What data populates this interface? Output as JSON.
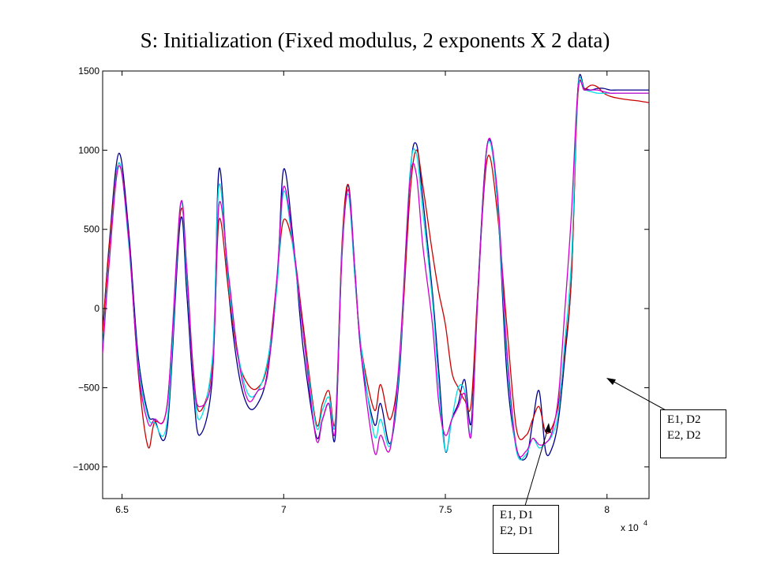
{
  "chart_data": {
    "type": "line",
    "title": "S: Initialization (Fixed modulus, 2 exponents X 2 data)",
    "xlabel": "",
    "ylabel": "",
    "x_exponent_label": "x 10",
    "x_exponent_power": "4",
    "xlim": [
      64400,
      81300
    ],
    "ylim": [
      -1200,
      1500
    ],
    "x_ticks": [
      65000,
      70000,
      75000,
      80000
    ],
    "x_tick_labels": [
      "6.5",
      "7",
      "7.5",
      "8"
    ],
    "y_ticks": [
      -1000,
      -500,
      0,
      500,
      1000,
      1500
    ],
    "y_tick_labels": [
      "−1000",
      "−500",
      "0",
      "500",
      "1000",
      "1500"
    ],
    "grid": false,
    "series": [
      {
        "color": "#00008b",
        "x": [
          64400,
          64600,
          64900,
          65200,
          65500,
          65800,
          66000,
          66400,
          66800,
          67000,
          67200,
          67400,
          67800,
          68000,
          68300,
          68600,
          68900,
          69200,
          69500,
          69800,
          70000,
          70300,
          70600,
          71000,
          71200,
          71400,
          71600,
          71800,
          72000,
          72200,
          72400,
          72800,
          73000,
          73300,
          73600,
          73900,
          74100,
          74300,
          74600,
          74800,
          75000,
          75200,
          75400,
          75600,
          75800,
          76000,
          76300,
          76600,
          76900,
          77200,
          77500,
          77700,
          77900,
          78100,
          78300,
          78500,
          78700,
          78900,
          79100,
          79300,
          79500,
          79700,
          79900,
          80100,
          80300,
          80600,
          81000,
          81300
        ],
        "y": [
          -150,
          400,
          980,
          500,
          -300,
          -660,
          -700,
          -750,
          550,
          100,
          -500,
          -800,
          -420,
          880,
          100,
          -400,
          -620,
          -600,
          -400,
          180,
          880,
          420,
          -250,
          -800,
          -700,
          -600,
          -800,
          350,
          780,
          250,
          -300,
          -730,
          -600,
          -850,
          -350,
          820,
          1040,
          700,
          100,
          -400,
          -900,
          -700,
          -600,
          -450,
          -720,
          100,
          1040,
          700,
          -400,
          -880,
          -940,
          -720,
          -520,
          -900,
          -880,
          -700,
          -300,
          200,
          1390,
          1390,
          1380,
          1390,
          1390,
          1380,
          1380,
          1380,
          1380,
          1380
        ]
      },
      {
        "color": "#cc0000",
        "x": [
          64400,
          64600,
          64900,
          65200,
          65500,
          65800,
          66000,
          66400,
          66800,
          67000,
          67200,
          67400,
          67800,
          68000,
          68300,
          68600,
          68900,
          69200,
          69500,
          69800,
          70000,
          70300,
          70600,
          71000,
          71200,
          71400,
          71600,
          71800,
          72000,
          72200,
          72400,
          72800,
          73000,
          73300,
          73600,
          73900,
          74100,
          74300,
          74600,
          74800,
          75000,
          75200,
          75400,
          75600,
          75800,
          76000,
          76300,
          76600,
          76900,
          77200,
          77500,
          77700,
          77900,
          78100,
          78300,
          78500,
          78700,
          78900,
          79100,
          79300,
          79500,
          79700,
          79900,
          80100,
          80300,
          80600,
          81000,
          81300
        ],
        "y": [
          -150,
          380,
          920,
          450,
          -400,
          -870,
          -720,
          -600,
          600,
          250,
          -380,
          -650,
          -350,
          560,
          100,
          -320,
          -480,
          -500,
          -350,
          200,
          560,
          380,
          -100,
          -720,
          -600,
          -520,
          -700,
          400,
          780,
          200,
          -250,
          -640,
          -480,
          -700,
          -300,
          700,
          1000,
          780,
          350,
          100,
          -100,
          -400,
          -500,
          -580,
          -600,
          100,
          950,
          620,
          -100,
          -760,
          -800,
          -700,
          -620,
          -780,
          -750,
          -600,
          -250,
          200,
          1350,
          1380,
          1410,
          1400,
          1360,
          1340,
          1330,
          1320,
          1310,
          1300
        ]
      },
      {
        "color": "#00e0e8",
        "x": [
          64400,
          64600,
          64900,
          65200,
          65500,
          65800,
          66000,
          66400,
          66800,
          67000,
          67200,
          67400,
          67800,
          68000,
          68300,
          68600,
          68900,
          69200,
          69500,
          69800,
          70000,
          70300,
          70600,
          71000,
          71200,
          71400,
          71600,
          71800,
          72000,
          72200,
          72400,
          72800,
          73000,
          73300,
          73600,
          73900,
          74100,
          74300,
          74600,
          74800,
          75000,
          75200,
          75400,
          75600,
          75800,
          76000,
          76300,
          76600,
          76900,
          77200,
          77500,
          77700,
          77900,
          78100,
          78300,
          78500,
          78700,
          78900,
          79100,
          79300,
          79500,
          79700,
          79900,
          80100,
          80300,
          80600,
          81000,
          81300
        ],
        "y": [
          -250,
          300,
          920,
          420,
          -350,
          -680,
          -720,
          -700,
          640,
          200,
          -420,
          -700,
          -300,
          780,
          150,
          -300,
          -540,
          -520,
          -330,
          150,
          740,
          360,
          -150,
          -740,
          -640,
          -560,
          -720,
          360,
          720,
          200,
          -250,
          -800,
          -700,
          -860,
          -300,
          840,
          980,
          620,
          50,
          -500,
          -900,
          -700,
          -500,
          -520,
          -780,
          60,
          1030,
          700,
          -300,
          -900,
          -920,
          -820,
          -880,
          -850,
          -800,
          -650,
          -200,
          300,
          1380,
          1380,
          1370,
          1360,
          1360,
          1360,
          1360,
          1360,
          1360,
          1360
        ]
      },
      {
        "color": "#cc00cc",
        "x": [
          64400,
          64600,
          64900,
          65200,
          65500,
          65800,
          66000,
          66400,
          66800,
          67000,
          67200,
          67400,
          67800,
          68000,
          68300,
          68600,
          68900,
          69200,
          69500,
          69800,
          70000,
          70300,
          70600,
          71000,
          71200,
          71400,
          71600,
          71800,
          72000,
          72200,
          72400,
          72800,
          73000,
          73300,
          73600,
          73900,
          74100,
          74300,
          74600,
          74800,
          75000,
          75200,
          75400,
          75600,
          75800,
          76000,
          76300,
          76600,
          76900,
          77200,
          77500,
          77700,
          77900,
          78100,
          78300,
          78500,
          78700,
          78900,
          79100,
          79300,
          79500,
          79700,
          79900,
          80100,
          80300,
          80600,
          81000,
          81300
        ],
        "y": [
          -280,
          280,
          900,
          450,
          -380,
          -720,
          -700,
          -600,
          650,
          250,
          -420,
          -620,
          -400,
          660,
          200,
          -320,
          -580,
          -520,
          -420,
          220,
          770,
          400,
          -150,
          -820,
          -700,
          -600,
          -760,
          320,
          750,
          250,
          -300,
          -900,
          -800,
          -880,
          -250,
          800,
          850,
          400,
          -100,
          -600,
          -800,
          -700,
          -620,
          -540,
          -800,
          50,
          1040,
          750,
          -250,
          -880,
          -900,
          -820,
          -860,
          -850,
          -780,
          -550,
          0,
          600,
          1380,
          1380,
          1380,
          1380,
          1370,
          1360,
          1360,
          1360,
          1360,
          1360
        ]
      }
    ],
    "annotations": [
      {
        "lines": [
          "E1, D2",
          "E2, D2"
        ]
      },
      {
        "lines": [
          "E1, D1",
          "E2, D1"
        ]
      }
    ]
  }
}
